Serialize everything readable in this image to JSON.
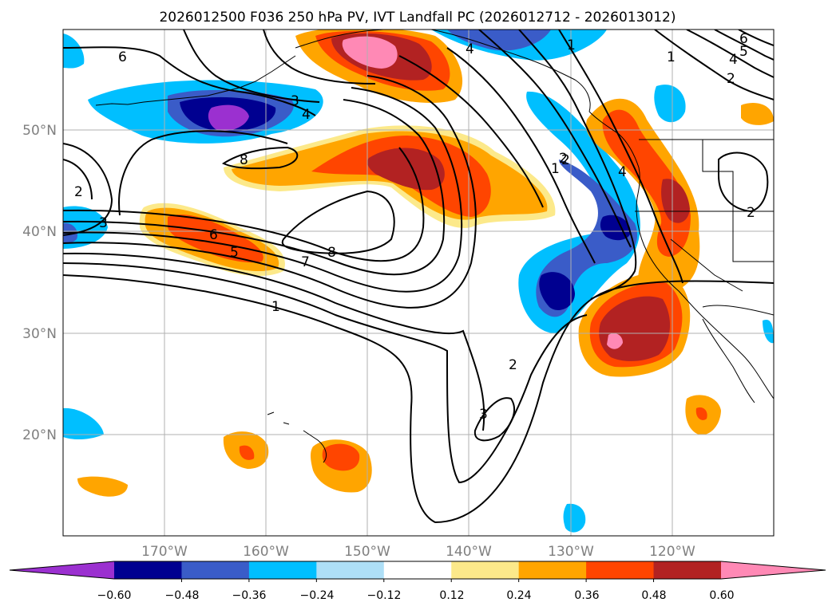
{
  "title": "2026012500 F036 250 hPa PV, IVT Landfall PC (2026012712 - 2026013012)",
  "map": {
    "lon_range": [
      -180,
      -110
    ],
    "lat_range": [
      10,
      60
    ],
    "lon_ticks": [
      "170°W",
      "160°W",
      "150°W",
      "140°W",
      "130°W",
      "120°W"
    ],
    "lat_ticks": [
      "50°N",
      "40°N",
      "30°N",
      "20°N"
    ],
    "gridlines": true,
    "contour_labels": [
      "6",
      "4",
      "3",
      "4",
      "1",
      "2",
      "6",
      "5",
      "4",
      "2",
      "1",
      "8",
      "2",
      "3",
      "6",
      "5",
      "7",
      "8",
      "1",
      "2",
      "4",
      "2",
      "3",
      "2",
      "1"
    ]
  },
  "colorbar": {
    "ticks": [
      "−0.60",
      "−0.48",
      "−0.36",
      "−0.24",
      "−0.12",
      "0.12",
      "0.24",
      "0.36",
      "0.48",
      "0.60"
    ],
    "colors": [
      "#9b30d0",
      "#000090",
      "#3a5cc8",
      "#00bfff",
      "#aedff7",
      "#ffffff",
      "#fce98a",
      "#ffa500",
      "#ff4500",
      "#b22222",
      "#ff89b5"
    ],
    "extend": "both"
  }
}
